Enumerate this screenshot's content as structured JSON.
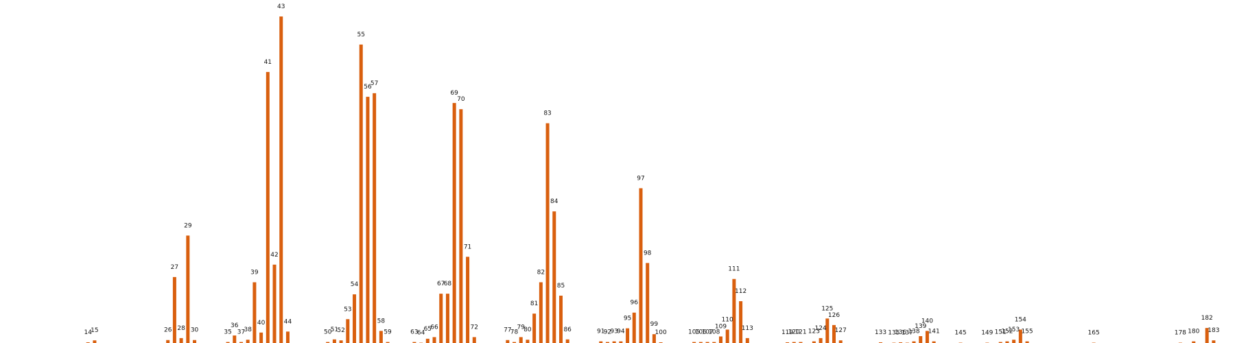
{
  "chart_data": {
    "type": "bar",
    "title": "",
    "xlabel": "",
    "ylabel": "",
    "grid": false,
    "legend": "none",
    "bar_color": "#D95F0E",
    "ylim": [
      0,
      100
    ],
    "x_range": [
      1,
      186
    ],
    "categories": [
      14,
      15,
      26,
      27,
      28,
      29,
      30,
      35,
      36,
      37,
      38,
      39,
      40,
      41,
      42,
      43,
      44,
      50,
      51,
      52,
      53,
      54,
      55,
      56,
      57,
      58,
      59,
      63,
      64,
      65,
      66,
      67,
      68,
      69,
      70,
      71,
      72,
      77,
      78,
      79,
      80,
      81,
      82,
      83,
      84,
      85,
      86,
      91,
      92,
      93,
      94,
      95,
      96,
      97,
      98,
      99,
      100,
      105,
      106,
      107,
      108,
      109,
      110,
      111,
      112,
      113,
      119,
      120,
      121,
      123,
      124,
      125,
      126,
      127,
      133,
      135,
      136,
      137,
      138,
      139,
      140,
      141,
      145,
      149,
      151,
      152,
      153,
      154,
      155,
      165,
      178,
      180,
      182,
      183
    ],
    "values": [
      0.2,
      0.8,
      0.9,
      20.2,
      1.5,
      32.9,
      0.9,
      0.3,
      2.3,
      0.3,
      1.0,
      18.6,
      3.2,
      83.0,
      24.0,
      100.0,
      3.5,
      0.3,
      1.1,
      0.8,
      7.3,
      14.9,
      91.4,
      75.4,
      76.5,
      3.7,
      0.3,
      0.3,
      0.1,
      1.3,
      1.8,
      15.1,
      15.1,
      73.5,
      71.6,
      26.4,
      1.8,
      0.9,
      0.3,
      1.8,
      1.0,
      9.0,
      18.6,
      67.3,
      40.3,
      14.5,
      1.1,
      0.5,
      0.3,
      0.5,
      0.5,
      4.5,
      9.3,
      47.4,
      24.5,
      2.7,
      0.2,
      0.3,
      0.3,
      0.3,
      0.3,
      2.0,
      4.1,
      19.6,
      12.8,
      1.5,
      0.2,
      0.3,
      0.3,
      0.5,
      1.5,
      7.5,
      5.5,
      0.8,
      0.2,
      0.1,
      0.2,
      0.1,
      0.5,
      2.1,
      3.7,
      0.5,
      0.1,
      0.1,
      0.3,
      0.5,
      1.0,
      4.1,
      0.5,
      0.1,
      0.1,
      0.5,
      4.6,
      0.8
    ]
  }
}
